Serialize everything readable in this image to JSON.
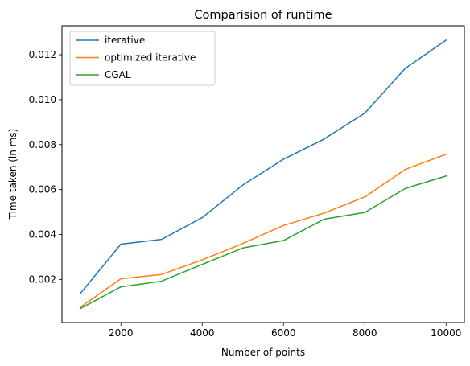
{
  "chart_data": {
    "type": "line",
    "title": "Comparision of runtime",
    "xlabel": "Number of points",
    "ylabel": "Time taken (in ms)",
    "x": [
      1000,
      2000,
      3000,
      4000,
      5000,
      6000,
      7000,
      8000,
      9000,
      10000
    ],
    "xticks": [
      2000,
      4000,
      6000,
      8000,
      10000
    ],
    "xtick_labels": [
      "2000",
      "4000",
      "6000",
      "8000",
      "10000"
    ],
    "yticks": [
      0.002,
      0.004,
      0.006,
      0.008,
      0.01,
      0.012
    ],
    "ytick_labels": [
      "0.002",
      "0.004",
      "0.006",
      "0.008",
      "0.010",
      "0.012"
    ],
    "xlim": [
      550,
      10450
    ],
    "ylim": [
      8e-05,
      0.01329
    ],
    "grid": false,
    "legend_position": "top-left",
    "series": [
      {
        "name": "iterative",
        "color": "#1f77b4",
        "values": [
          0.00137,
          0.00357,
          0.00378,
          0.00475,
          0.0062,
          0.00735,
          0.00825,
          0.0094,
          0.0114,
          0.01265
        ]
      },
      {
        "name": "optimized iterative",
        "color": "#ff7f0e",
        "values": [
          0.00076,
          0.00203,
          0.00222,
          0.00287,
          0.0036,
          0.0044,
          0.00495,
          0.00567,
          0.0069,
          0.00757
        ]
      },
      {
        "name": "CGAL",
        "color": "#2ca02c",
        "values": [
          0.0007,
          0.00167,
          0.00192,
          0.00267,
          0.0034,
          0.00373,
          0.00468,
          0.00498,
          0.00605,
          0.0066
        ]
      }
    ]
  }
}
